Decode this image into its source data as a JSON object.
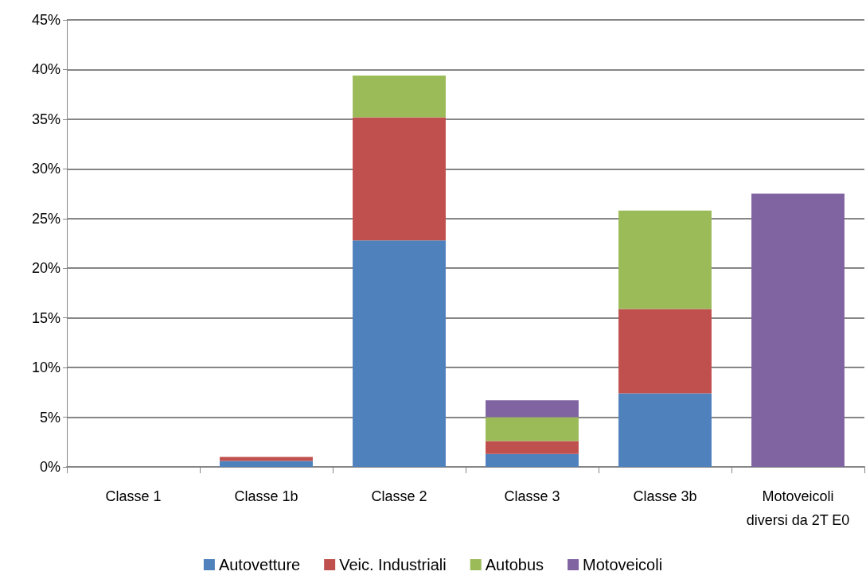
{
  "chart_data": {
    "type": "bar",
    "stacked": true,
    "categories": [
      "Classe 1",
      "Classe 1b",
      "Classe 2",
      "Classe 3",
      "Classe 3b",
      "Motoveicoli\ndiversi da 2T E0"
    ],
    "series": [
      {
        "name": "Autovetture",
        "color": "#4f81bd",
        "values": [
          0,
          0.6,
          22.8,
          1.3,
          7.4,
          0
        ]
      },
      {
        "name": "Veic. Industriali",
        "color": "#c0504d",
        "values": [
          0,
          0.4,
          12.4,
          1.3,
          8.5,
          0
        ]
      },
      {
        "name": "Autobus",
        "color": "#9bbb59",
        "values": [
          0,
          0,
          4.2,
          2.4,
          9.9,
          0
        ]
      },
      {
        "name": "Motoveicoli",
        "color": "#8064a2",
        "values": [
          0,
          0,
          0,
          1.7,
          0,
          27.5
        ]
      }
    ],
    "ylim": [
      0,
      45
    ],
    "yticks": [
      {
        "value": 0,
        "label": "0%"
      },
      {
        "value": 5,
        "label": "5%"
      },
      {
        "value": 10,
        "label": "10%"
      },
      {
        "value": 15,
        "label": "15%"
      },
      {
        "value": 20,
        "label": "20%"
      },
      {
        "value": 25,
        "label": "25%"
      },
      {
        "value": 30,
        "label": "30%"
      },
      {
        "value": 35,
        "label": "35%"
      },
      {
        "value": 40,
        "label": "40%"
      },
      {
        "value": 45,
        "label": "45%"
      }
    ],
    "grid": "y",
    "legend": "bottom"
  }
}
